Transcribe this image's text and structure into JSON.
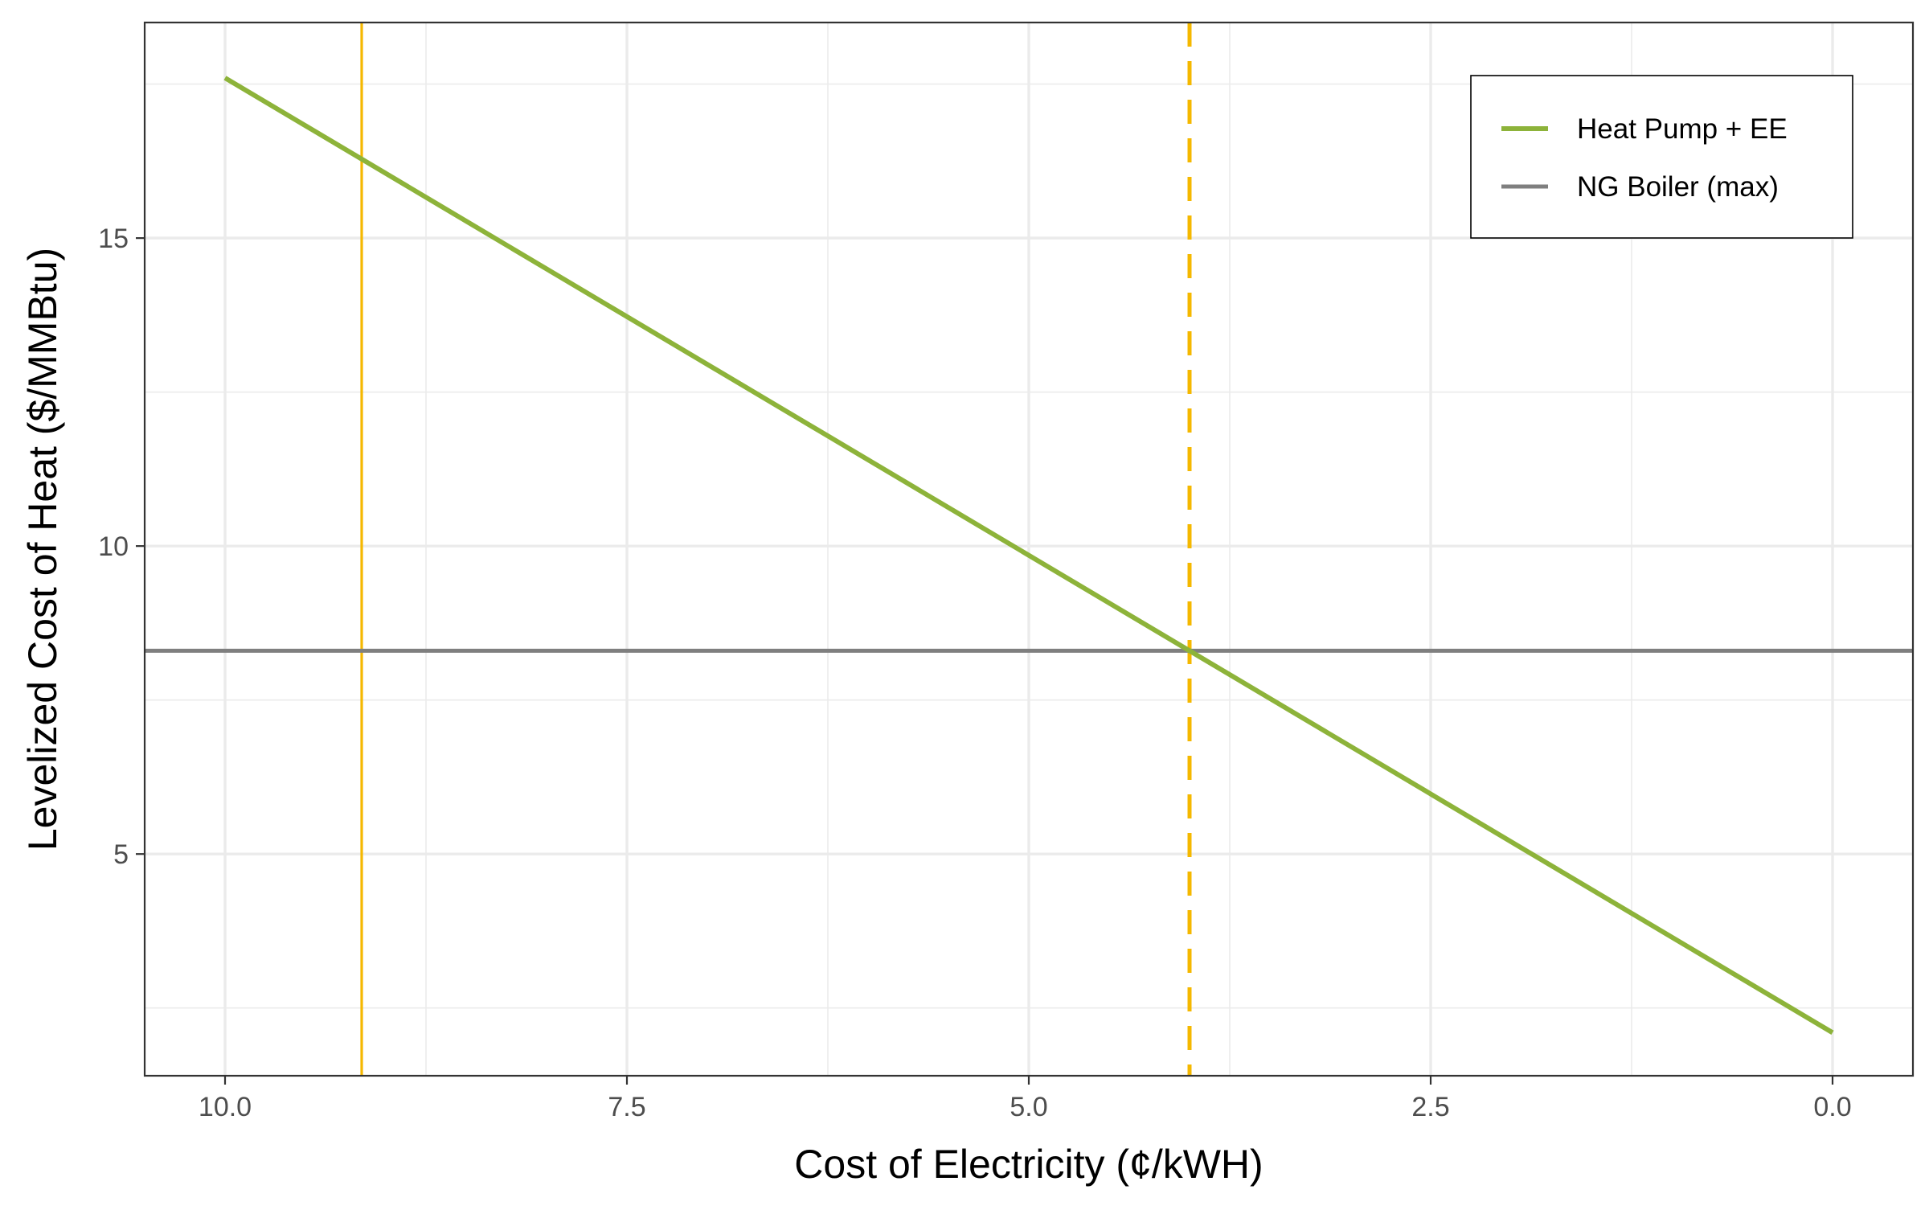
{
  "chart_data": {
    "type": "line",
    "xlabel": "Cost of Electricity (¢/kWH)",
    "ylabel": "Levelized Cost of Heat ($/MMBtu)",
    "x_reversed": true,
    "xlim": [
      10.5,
      -0.5
    ],
    "ylim": [
      1.4,
      18.5
    ],
    "x_ticks": [
      10.0,
      7.5,
      5.0,
      2.5,
      0.0
    ],
    "x_tick_labels": [
      "10.0",
      "7.5",
      "5.0",
      "2.5",
      "0.0"
    ],
    "x_minor_ticks": [
      8.75,
      6.25,
      3.75,
      1.25
    ],
    "y_ticks": [
      5,
      10,
      15
    ],
    "y_tick_labels": [
      "5",
      "10",
      "15"
    ],
    "y_minor_ticks": [
      2.5,
      7.5,
      12.5,
      17.5
    ],
    "grid": true,
    "legend_position": "top-right",
    "series": [
      {
        "name": "Heat Pump + EE",
        "color": "#8db33a",
        "x": [
          10.0,
          0.0
        ],
        "y": [
          17.6,
          2.1
        ]
      },
      {
        "name": "NG Boiler (max)",
        "color": "#7f7f7f",
        "hline": 8.3
      }
    ],
    "reference_lines": [
      {
        "x": 9.15,
        "style": "solid",
        "color": "#f5b800"
      },
      {
        "x": 4.0,
        "style": "dashed",
        "color": "#f5b800"
      }
    ]
  }
}
